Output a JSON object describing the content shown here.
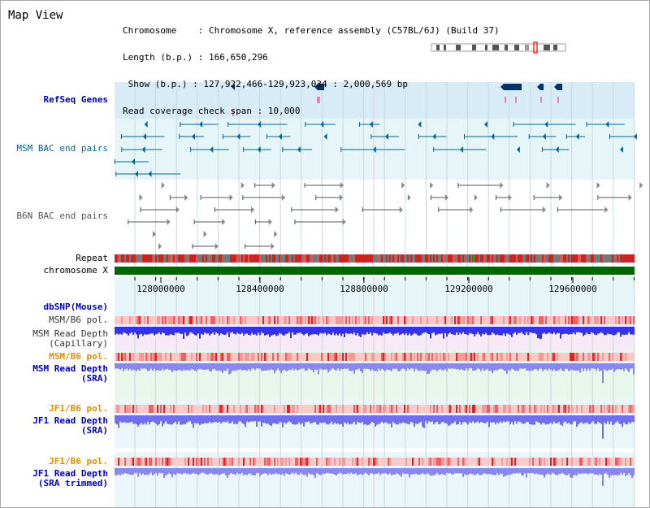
{
  "header": {
    "title": "Map View",
    "info_lines": [
      "Chromosome    : Chromosome X, reference assembly (C57BL/6J) (Build 37)",
      "Length (b.p.) : 166,650,296",
      " Show (b.p.) : 127,922,466-129,923,034 : 2,000,569 bp",
      "Read coverage check span : 10,000"
    ]
  },
  "colors": {
    "refseq": "#0000cc",
    "msm_bac": "#006699",
    "b6n_bac": "#555555",
    "repeat": "#cc2222",
    "chromosome": "#006600",
    "orange_label": "#e09000",
    "depth_blue": "#3333ee",
    "depth_light": "#7777ee"
  },
  "tracks": {
    "refseq_genes": "RefSeq Genes",
    "msm_bac": "MSM BAC end pairs",
    "b6n_bac": "B6N BAC end pairs",
    "repeat": "Repeat",
    "chromosome": "chromosome X"
  },
  "axis": {
    "ticks": [
      "128000000",
      "128400000",
      "128800000",
      "129200000",
      "129600000"
    ]
  },
  "lower_tracks": {
    "dbsnp": "dbSNP(Mouse)",
    "msm_b6_pol_1": "MSM/B6 pol.",
    "msm_read_depth_cap_1": "MSM Read Depth",
    "msm_read_depth_cap_2": "(Capillary)",
    "msm_b6_pol_2": "MSM/B6 pol.",
    "msm_read_depth_sra_1": "MSM Read Depth",
    "msm_read_depth_sra_2": "(SRA)",
    "jf1_b6_pol_1": "JF1/B6 pol.",
    "jf1_read_depth_sra_1": "JF1 Read Depth",
    "jf1_read_depth_sra_2": "(SRA)",
    "jf1_b6_pol_2": "JF1/B6 pol.",
    "jf1_read_depth_trim_1": "JF1 Read Depth",
    "jf1_read_depth_trim_2": "(SRA trimmed)"
  }
}
